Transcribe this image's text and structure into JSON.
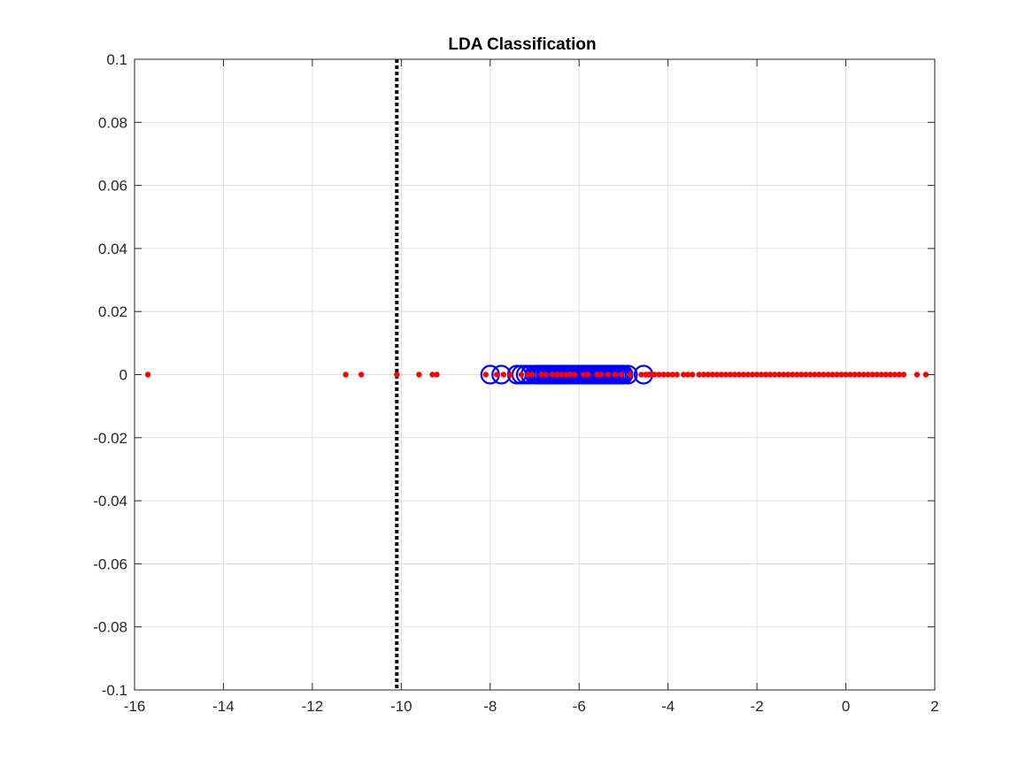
{
  "chart_data": {
    "type": "scatter",
    "title": "LDA Classification",
    "xlabel": "",
    "ylabel": "",
    "xlim": [
      -16,
      2
    ],
    "ylim": [
      -0.1,
      0.1
    ],
    "x_ticks": [
      -16,
      -14,
      -12,
      -10,
      -8,
      -6,
      -4,
      -2,
      0,
      2
    ],
    "x_tick_labels": [
      "-16",
      "-14",
      "-12",
      "-10",
      "-8",
      "-6",
      "-4",
      "-2",
      "0",
      "2"
    ],
    "y_ticks": [
      -0.1,
      -0.08,
      -0.06,
      -0.04,
      -0.02,
      0,
      0.02,
      0.04,
      0.06,
      0.08,
      0.1
    ],
    "y_tick_labels": [
      "-0.1",
      "-0.08",
      "-0.06",
      "-0.04",
      "-0.02",
      "0",
      "0.02",
      "0.04",
      "0.06",
      "0.08",
      "0.1"
    ],
    "grid": true,
    "threshold": {
      "x": -10.1,
      "style": "dotted",
      "color": "#000000"
    },
    "series": [
      {
        "marker": "open-circle",
        "color": "#0000ff",
        "x": [
          -8.0,
          -7.75,
          -7.4,
          -7.3,
          -7.2,
          -7.1,
          -7.0,
          -6.95,
          -6.9,
          -6.85,
          -6.8,
          -6.75,
          -6.7,
          -6.65,
          -6.6,
          -6.55,
          -6.5,
          -6.45,
          -6.4,
          -6.35,
          -6.3,
          -6.25,
          -6.2,
          -6.15,
          -6.1,
          -6.05,
          -6.0,
          -5.95,
          -5.9,
          -5.85,
          -5.8,
          -5.75,
          -5.7,
          -5.65,
          -5.6,
          -5.55,
          -5.5,
          -5.45,
          -5.4,
          -5.35,
          -5.3,
          -5.25,
          -5.2,
          -5.15,
          -5.1,
          -5.05,
          -5.0,
          -4.9,
          -4.55
        ],
        "y": [
          0,
          0,
          0,
          0,
          0,
          0,
          0,
          0,
          0,
          0,
          0,
          0,
          0,
          0,
          0,
          0,
          0,
          0,
          0,
          0,
          0,
          0,
          0,
          0,
          0,
          0,
          0,
          0,
          0,
          0,
          0,
          0,
          0,
          0,
          0,
          0,
          0,
          0,
          0,
          0,
          0,
          0,
          0,
          0,
          0,
          0,
          0,
          0,
          0
        ]
      },
      {
        "marker": "filled-dot",
        "color": "#ff0000",
        "x": [
          -15.7,
          -11.25,
          -10.9,
          -10.1,
          -9.6,
          -9.3,
          -9.2,
          -8.1,
          -7.85,
          -7.7,
          -7.55,
          -7.3,
          -7.15,
          -7.05,
          -6.85,
          -6.75,
          -6.6,
          -6.5,
          -6.4,
          -6.3,
          -6.2,
          -6.1,
          -5.9,
          -5.8,
          -5.6,
          -5.5,
          -5.35,
          -5.2,
          -5.05,
          -4.85,
          -4.6,
          -4.5,
          -4.45,
          -4.4,
          -4.35,
          -4.3,
          -4.2,
          -4.1,
          -4.0,
          -3.9,
          -3.8,
          -3.65,
          -3.55,
          -3.45,
          -3.3,
          -3.2,
          -3.1,
          -3.0,
          -2.9,
          -2.8,
          -2.7,
          -2.6,
          -2.5,
          -2.4,
          -2.3,
          -2.2,
          -2.1,
          -2.0,
          -1.9,
          -1.8,
          -1.7,
          -1.6,
          -1.5,
          -1.4,
          -1.3,
          -1.2,
          -1.1,
          -1.0,
          -0.9,
          -0.8,
          -0.7,
          -0.6,
          -0.5,
          -0.4,
          -0.3,
          -0.2,
          -0.1,
          0.0,
          0.1,
          0.2,
          0.3,
          0.4,
          0.5,
          0.6,
          0.7,
          0.8,
          0.9,
          1.0,
          1.1,
          1.2,
          1.3,
          1.6,
          1.8
        ],
        "y": [
          0,
          0,
          0,
          0,
          0,
          0,
          0,
          0,
          0,
          0,
          0,
          0,
          0,
          0,
          0,
          0,
          0,
          0,
          0,
          0,
          0,
          0,
          0,
          0,
          0,
          0,
          0,
          0,
          0,
          0,
          0,
          0,
          0,
          0,
          0,
          0,
          0,
          0,
          0,
          0,
          0,
          0,
          0,
          0,
          0,
          0,
          0,
          0,
          0,
          0,
          0,
          0,
          0,
          0,
          0,
          0,
          0,
          0,
          0,
          0,
          0,
          0,
          0,
          0,
          0,
          0,
          0,
          0,
          0,
          0,
          0,
          0,
          0,
          0,
          0,
          0,
          0,
          0,
          0,
          0,
          0,
          0,
          0,
          0,
          0,
          0,
          0,
          0,
          0,
          0,
          0,
          0,
          0
        ]
      }
    ]
  }
}
